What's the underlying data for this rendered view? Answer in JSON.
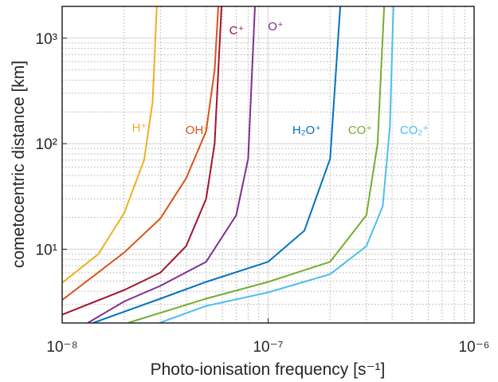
{
  "chart_data": {
    "type": "line",
    "x_label": "Photo-ionisation frequency [s⁻¹]",
    "y_label": "cometocentric distance [km]",
    "x_log": true,
    "y_log": true,
    "grid": true,
    "minor_grid": true,
    "xlim": [
      1e-08,
      1e-06
    ],
    "ylim": [
      2,
      2000
    ],
    "xticks": [
      {
        "value": 1e-08,
        "label": "10⁻⁸"
      },
      {
        "value": 1e-07,
        "label": "10⁻⁷"
      },
      {
        "value": 1e-06,
        "label": "10⁻⁶"
      }
    ],
    "yticks": [
      {
        "value": 10,
        "label": "10¹"
      },
      {
        "value": 100,
        "label": "10²"
      },
      {
        "value": 1000,
        "label": "10³"
      }
    ],
    "series": [
      {
        "name": "H⁺",
        "color": "#EDB120",
        "x": [
          1e-08,
          1.5e-08,
          2e-08,
          2.5e-08,
          2.75e-08,
          2.88e-08
        ],
        "values": [
          4.8,
          9,
          22,
          70,
          250,
          2000
        ]
      },
      {
        "name": "OH⁺",
        "color": "#D95319",
        "x": [
          1e-08,
          2e-08,
          3e-08,
          4e-08,
          5e-08,
          5.5e-08,
          5.73e-08
        ],
        "values": [
          3.3,
          9.3,
          19.6,
          47,
          131,
          500,
          2000
        ]
      },
      {
        "name": "C⁺",
        "color": "#A2142F",
        "x": [
          1e-08,
          2e-08,
          3e-08,
          4e-08,
          5e-08,
          5.5e-08,
          5.94e-08
        ],
        "values": [
          2.4,
          4.1,
          6.0,
          10.7,
          30,
          100,
          2000
        ]
      },
      {
        "name": "O⁺",
        "color": "#7E2F8E",
        "x": [
          1.33e-08,
          2e-08,
          3e-08,
          5e-08,
          7e-08,
          8e-08,
          8.63e-08
        ],
        "values": [
          2,
          3.2,
          4.5,
          7.6,
          21,
          72,
          2000
        ]
      },
      {
        "name": "H₂O⁺",
        "color": "#0072BD",
        "x": [
          1.41e-08,
          3e-08,
          5e-08,
          1e-07,
          1.5e-07,
          2e-07,
          2.24e-07
        ],
        "values": [
          2,
          3.4,
          4.9,
          7.6,
          15,
          72,
          2000
        ]
      },
      {
        "name": "CO⁺",
        "color": "#77AC30",
        "x": [
          2.08e-08,
          5e-08,
          1e-07,
          2e-07,
          3e-07,
          3.4e-07,
          3.66e-07
        ],
        "values": [
          2,
          3.4,
          4.9,
          7.6,
          21,
          100,
          2000
        ]
      },
      {
        "name": "CO₂⁺",
        "color": "#4DBEEE",
        "x": [
          2.96e-08,
          5e-08,
          1e-07,
          2e-07,
          3e-07,
          3.6e-07,
          3.9e-07,
          4.06e-07
        ],
        "values": [
          2,
          2.9,
          3.9,
          5.8,
          10.7,
          25.5,
          144,
          2000
        ]
      }
    ]
  }
}
